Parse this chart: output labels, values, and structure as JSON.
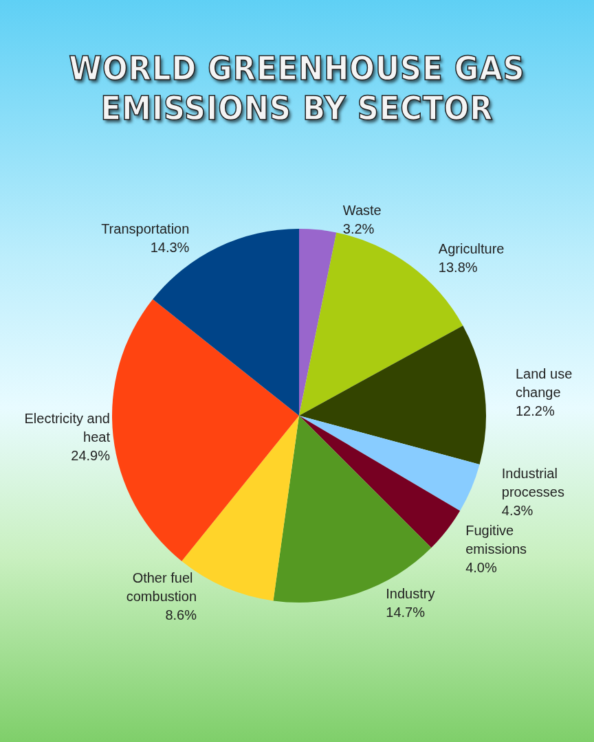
{
  "chart_data": {
    "type": "pie",
    "title": "WORLD GREENHOUSE GAS EMISSIONS BY SECTOR",
    "categories": [
      "Waste",
      "Agriculture",
      "Land use change",
      "Industrial processes",
      "Fugitive emissions",
      "Industry",
      "Other fuel combustion",
      "Electricity and heat",
      "Transportation"
    ],
    "values": [
      3.2,
      13.8,
      12.2,
      4.3,
      4.0,
      14.7,
      8.6,
      24.9,
      14.3
    ],
    "value_labels": [
      "3.2%",
      "13.8%",
      "12.2%",
      "4.3%",
      "4.0%",
      "14.7%",
      "8.6%",
      "24.9%",
      "14.3%"
    ],
    "colors": [
      "#9966cc",
      "#aacc11",
      "#334400",
      "#88ccff",
      "#770022",
      "#559922",
      "#ffd42a",
      "#ff4411",
      "#004488"
    ],
    "legend": false
  }
}
